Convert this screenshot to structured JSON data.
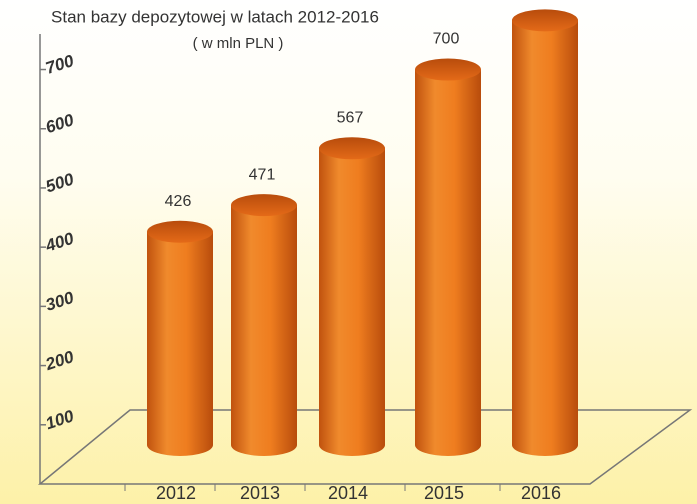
{
  "chart_data": {
    "type": "cylinder",
    "title": "Stan bazy depozytowej w latach 2012-2016",
    "subtitle": "( w mln PLN )",
    "categories": [
      "2012",
      "2013",
      "2014",
      "2015",
      "2016"
    ],
    "values": [
      426,
      471,
      567,
      700,
      783
    ],
    "color": "#ee7f22",
    "ylim": [
      0,
      760
    ],
    "yticks": [
      100,
      200,
      300,
      400,
      500,
      600,
      700
    ],
    "grid": false
  }
}
